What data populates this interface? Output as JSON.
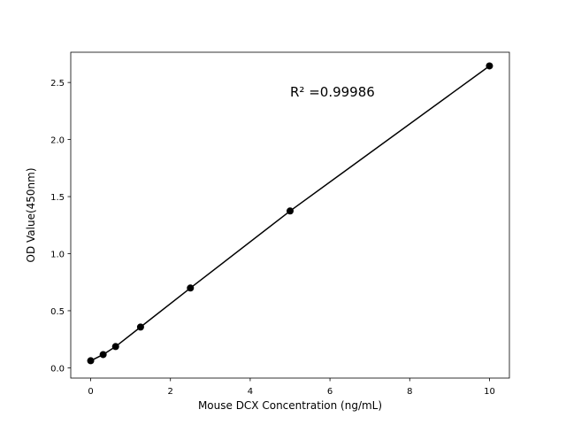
{
  "chart_data": {
    "type": "line",
    "x_label": "Mouse DCX Concentration (ng/mL)",
    "y_label": "OD Value(450nm)",
    "annotation": "R² =0.99986",
    "x": [
      0,
      0.3125,
      0.625,
      1.25,
      2.5,
      5,
      10
    ],
    "series": [
      {
        "name": "OD",
        "color": "#000000",
        "values": [
          0.062,
          0.116,
          0.186,
          0.357,
          0.699,
          1.374,
          2.645
        ]
      }
    ],
    "xlim": [
      -0.5,
      10.5
    ],
    "ylim": [
      -0.09,
      2.765
    ],
    "xticks": [
      0,
      2,
      4,
      6,
      8,
      10
    ],
    "yticks": [
      {
        "value": 0,
        "label": "0.0"
      },
      {
        "value": 0.5,
        "label": "0.5"
      },
      {
        "value": 1,
        "label": "1.0"
      },
      {
        "value": 1.5,
        "label": "1.5"
      },
      {
        "value": 2,
        "label": "2.0"
      },
      {
        "value": 2.5,
        "label": "2.5"
      }
    ],
    "grid": false
  }
}
